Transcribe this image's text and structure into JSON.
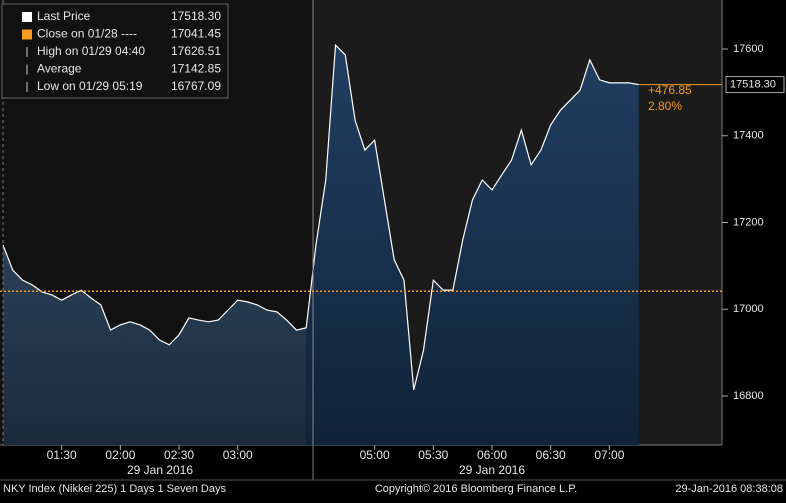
{
  "chart_data": {
    "type": "area",
    "legend": [
      {
        "name": "Last Price",
        "value": "17518.30",
        "color": "#ffffff"
      },
      {
        "name": "Close on 01/28 ----",
        "value": "17041.45",
        "color": "#f39c1f"
      },
      {
        "name": "High on 01/29 04:40",
        "value": "17626.51"
      },
      {
        "name": "Average",
        "value": "17142.85"
      },
      {
        "name": "Low on 01/29 05:19",
        "value": "16767.09"
      }
    ],
    "categories": [
      null,
      null,
      null,
      null,
      null,
      null,
      "01:30",
      null,
      null,
      null,
      null,
      null,
      "02:00",
      null,
      null,
      null,
      null,
      null,
      "02:30",
      null,
      null,
      null,
      null,
      null,
      "03:00",
      null,
      null,
      null,
      null,
      null,
      null,
      null,
      null,
      null,
      null,
      null,
      null,
      null,
      "05:00",
      null,
      null,
      null,
      null,
      null,
      "05:30",
      null,
      null,
      null,
      null,
      null,
      "06:00",
      null,
      null,
      null,
      null,
      null,
      "06:30",
      null,
      null,
      null,
      null,
      null,
      "07:00",
      null,
      null,
      null
    ],
    "series": [
      {
        "name": "Last Price",
        "color": "#ffffff",
        "values": [
          17148,
          17090,
          17067,
          17056,
          17040,
          17033,
          17021,
          17033,
          17044,
          17026,
          17010,
          16952,
          16964,
          16971,
          16964,
          16952,
          16929,
          16918,
          16941,
          16980,
          16975,
          16971,
          16975,
          16998,
          17021,
          17017,
          17010,
          16998,
          16994,
          16975,
          16952,
          16957,
          17148,
          17298,
          17609,
          17586,
          17436,
          17367,
          17390,
          17252,
          17114,
          17067,
          16814,
          16906,
          17067,
          17044,
          17044,
          17159,
          17252,
          17298,
          17275,
          17310,
          17344,
          17413,
          17333,
          17367,
          17425,
          17459,
          17482,
          17505,
          17575,
          17529,
          17522,
          17522,
          17522,
          17518
        ]
      }
    ],
    "reference_line": {
      "value": 17041.45,
      "color": "#f39c1f"
    },
    "change": "+476.85",
    "change_pct": "2.80%",
    "date_labels": [
      "29 Jan 2016",
      "29 Jan 2016"
    ],
    "ylim": [
      16687,
      17713
    ],
    "yticks": [
      16800,
      17000,
      17200,
      17400,
      17600
    ],
    "footer": {
      "left": "NKY Index (Nikkei 225) 1 Days 1 Seven Days",
      "center": "Copyright© 2016 Bloomberg Finance L.P.",
      "right": "29-Jan-2016 08:38:08"
    }
  }
}
